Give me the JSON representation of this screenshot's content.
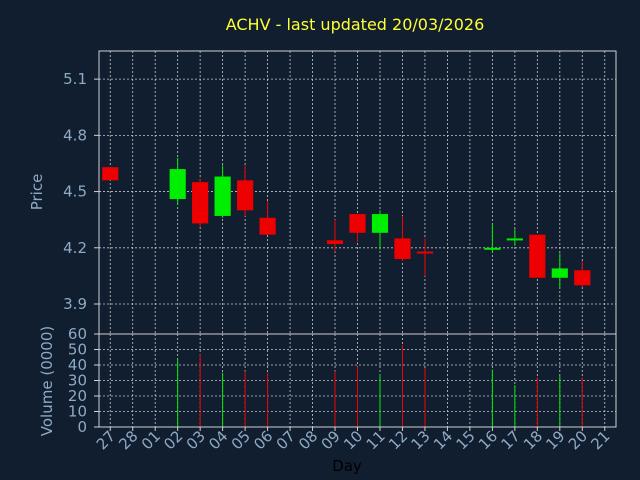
{
  "colors": {
    "background": "#111e30",
    "title": "#ffff33",
    "axis_text": "#8eaac4",
    "up": "#00ee00",
    "down": "#ee0000",
    "grid": "#c8c8c8"
  },
  "chart_data": {
    "type": "candlestick",
    "title": "ACHV - last updated 20/03/2026",
    "xlabel": "Day",
    "x_ticks": [
      "27",
      "28",
      "01",
      "02",
      "03",
      "04",
      "05",
      "06",
      "07",
      "08",
      "09",
      "10",
      "11",
      "12",
      "13",
      "14",
      "15",
      "16",
      "17",
      "18",
      "19",
      "20",
      "21"
    ],
    "grid": true,
    "price_panel": {
      "ylabel": "Price",
      "ylim": [
        3.74,
        5.25
      ],
      "yticks": [
        "5.1",
        "4.8",
        "4.5",
        "4.2",
        "3.9"
      ],
      "ytick_values": [
        5.1,
        4.8,
        4.5,
        4.2,
        3.9
      ],
      "candles": [
        {
          "x": "27",
          "open": 4.63,
          "close": 4.56,
          "high": 4.63,
          "low": 4.56
        },
        {
          "x": "02",
          "open": 4.46,
          "close": 4.62,
          "high": 4.68,
          "low": 4.43
        },
        {
          "x": "03",
          "open": 4.55,
          "close": 4.33,
          "high": 4.57,
          "low": 4.31
        },
        {
          "x": "04",
          "open": 4.37,
          "close": 4.58,
          "high": 4.64,
          "low": 4.36
        },
        {
          "x": "05",
          "open": 4.56,
          "close": 4.4,
          "high": 4.64,
          "low": 4.37
        },
        {
          "x": "06",
          "open": 4.36,
          "close": 4.27,
          "high": 4.45,
          "low": 4.27
        },
        {
          "x": "09",
          "open": 4.24,
          "close": 4.22,
          "high": 4.35,
          "low": 4.18
        },
        {
          "x": "10",
          "open": 4.38,
          "close": 4.28,
          "high": 4.38,
          "low": 4.23
        },
        {
          "x": "11",
          "open": 4.28,
          "close": 4.38,
          "high": 4.4,
          "low": 4.19
        },
        {
          "x": "12",
          "open": 4.25,
          "close": 4.14,
          "high": 4.37,
          "low": 4.13
        },
        {
          "x": "13",
          "open": 4.18,
          "close": 4.17,
          "high": 4.25,
          "low": 4.05
        },
        {
          "x": "16",
          "open": 4.19,
          "close": 4.2,
          "high": 4.33,
          "low": 4.18
        },
        {
          "x": "17",
          "open": 4.24,
          "close": 4.25,
          "high": 4.3,
          "low": 4.21
        },
        {
          "x": "18",
          "open": 4.27,
          "close": 4.04,
          "high": 4.27,
          "low": 4.04
        },
        {
          "x": "19",
          "open": 4.04,
          "close": 4.09,
          "high": 4.17,
          "low": 3.98
        },
        {
          "x": "20",
          "open": 4.08,
          "close": 4.0,
          "high": 4.13,
          "low": 3.99
        }
      ]
    },
    "volume_panel": {
      "ylabel": "Volume (0000)",
      "ylim": [
        0,
        60
      ],
      "yticks": [
        "60",
        "50",
        "40",
        "30",
        "20",
        "10",
        "0"
      ],
      "ytick_values": [
        60,
        50,
        40,
        30,
        20,
        10,
        0
      ],
      "bars": [
        {
          "x": "02",
          "value": 44,
          "direction": "up"
        },
        {
          "x": "03",
          "value": 47,
          "direction": "down"
        },
        {
          "x": "04",
          "value": 35,
          "direction": "up"
        },
        {
          "x": "05",
          "value": 36,
          "direction": "down"
        },
        {
          "x": "06",
          "value": 35,
          "direction": "down"
        },
        {
          "x": "09",
          "value": 36,
          "direction": "down"
        },
        {
          "x": "10",
          "value": 39,
          "direction": "down"
        },
        {
          "x": "11",
          "value": 34,
          "direction": "up"
        },
        {
          "x": "12",
          "value": 53,
          "direction": "down"
        },
        {
          "x": "13",
          "value": 38,
          "direction": "down"
        },
        {
          "x": "16",
          "value": 37,
          "direction": "up"
        },
        {
          "x": "17",
          "value": 27,
          "direction": "up"
        },
        {
          "x": "18",
          "value": 32,
          "direction": "down"
        },
        {
          "x": "19",
          "value": 33,
          "direction": "up"
        },
        {
          "x": "20",
          "value": 32,
          "direction": "down"
        }
      ]
    }
  }
}
